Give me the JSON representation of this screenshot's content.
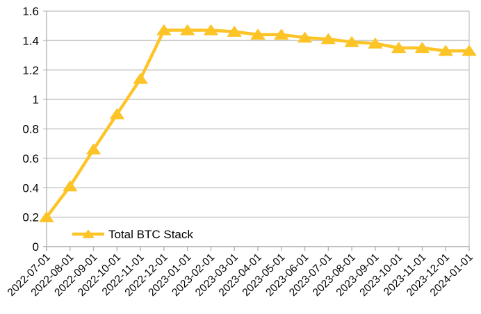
{
  "chart_data": {
    "type": "line",
    "title": "",
    "x": [
      "2022-07-01",
      "2022-08-01",
      "2022-09-01",
      "2022-10-01",
      "2022-11-01",
      "2022-12-01",
      "2023-01-01",
      "2023-02-01",
      "2023-03-01",
      "2023-04-01",
      "2023-05-01",
      "2023-06-01",
      "2023-07-01",
      "2023-08-01",
      "2023-09-01",
      "2023-10-01",
      "2023-11-01",
      "2023-12-01",
      "2024-01-01"
    ],
    "series": [
      {
        "name": "Total BTC Stack",
        "values": [
          0.2,
          0.41,
          0.66,
          0.9,
          1.14,
          1.47,
          1.47,
          1.47,
          1.46,
          1.44,
          1.44,
          1.42,
          1.41,
          1.39,
          1.38,
          1.35,
          1.35,
          1.33,
          1.33
        ],
        "color": "#FDC427",
        "marker": "triangle-up",
        "line_width": 4.5
      }
    ],
    "xlabel": "",
    "ylabel": "",
    "ylim": [
      0,
      1.6
    ],
    "ytick_step": 0.2,
    "ytick_labels": [
      "0",
      "0.2",
      "0.4",
      "0.6",
      "0.8",
      "1",
      "1.2",
      "1.4",
      "1.6"
    ],
    "grid": "horizontal",
    "x_label_rotation_deg": 45,
    "legend_position": "inside-bottom-left",
    "colors": {
      "background": "#ffffff",
      "gridline": "#c9c9c9",
      "axis": "#b3b3b3",
      "text": "#000000"
    }
  }
}
